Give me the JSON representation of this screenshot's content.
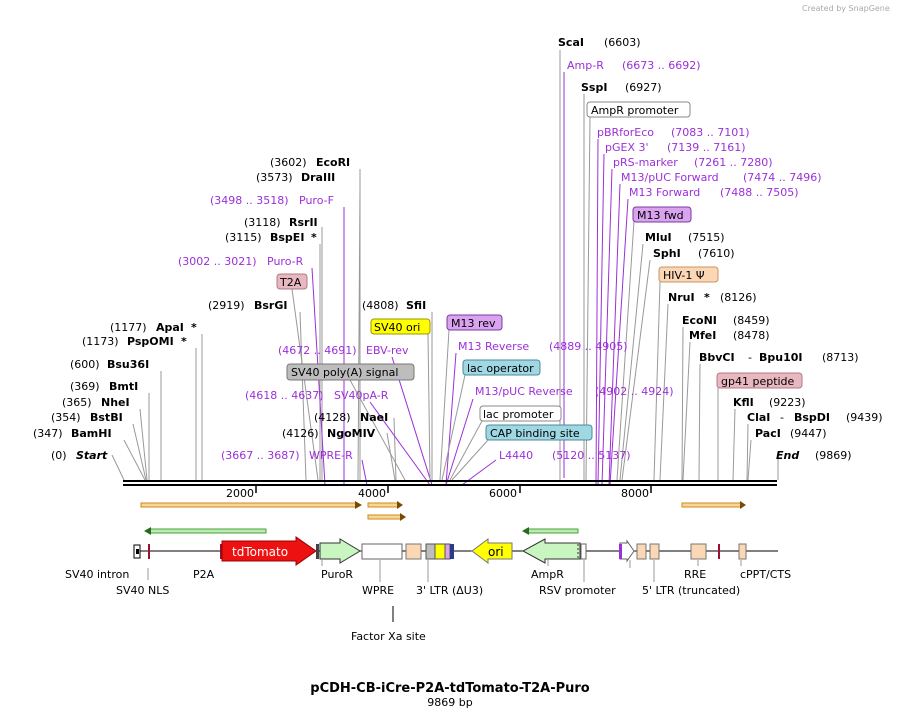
{
  "credit": "Created by SnapGene",
  "plasmid": {
    "name": "pCDH-CB-iCre-P2A-tdTomato-T2A-Puro",
    "length_label": "9869 bp"
  },
  "colors": {
    "primer": "#9b30d8",
    "sites": "#000000",
    "line": "#999999",
    "axis": "#000000",
    "orange_arrow": "#f2a33a",
    "green_arrow": "#33aa33",
    "tdTomato": "#ee1111",
    "ori": "#ffff00"
  },
  "axis_ticks": [
    "2000",
    "4000",
    "6000",
    "8000"
  ],
  "sites": [
    {
      "name": "ScaI",
      "pos": "(6603)",
      "star": false
    },
    {
      "name": "SspI",
      "pos": "(6927)",
      "star": false
    },
    {
      "name": "EcoRI",
      "pos": "(3602)",
      "star": false
    },
    {
      "name": "DraIII",
      "pos": "(3573)",
      "star": false
    },
    {
      "name": "RsrII",
      "pos": "(3118)",
      "star": false
    },
    {
      "name": "BspEI",
      "pos": "(3115)",
      "star": true
    },
    {
      "name": "BsrGI",
      "pos": "(2919)",
      "star": false
    },
    {
      "name": "SfiI",
      "pos": "(4808)",
      "star": false
    },
    {
      "name": "ApaI",
      "pos": "(1177)",
      "star": true
    },
    {
      "name": "PspOMI",
      "pos": "(1173)",
      "star": true
    },
    {
      "name": "Bsu36I",
      "pos": "(600)",
      "star": false
    },
    {
      "name": "BmtI",
      "pos": "(369)",
      "star": false
    },
    {
      "name": "NheI",
      "pos": "(365)",
      "star": false
    },
    {
      "name": "BstBI",
      "pos": "(354)",
      "star": false
    },
    {
      "name": "BamHI",
      "pos": "(347)",
      "star": false
    },
    {
      "name": "NaeI",
      "pos": "(4128)",
      "star": false
    },
    {
      "name": "NgoMIV",
      "pos": "(4126)",
      "star": false
    },
    {
      "name": "MluI",
      "pos": "(7515)",
      "star": false
    },
    {
      "name": "SphI",
      "pos": "(7610)",
      "star": false
    },
    {
      "name": "NruI",
      "pos": "(8126)",
      "star": true
    },
    {
      "name": "EcoNI",
      "pos": "(8459)",
      "star": false
    },
    {
      "name": "MfeI",
      "pos": "(8478)",
      "star": false
    },
    {
      "name": "BbvCI",
      "pos": "",
      "star": false
    },
    {
      "name": "Bpu10I",
      "pos": "(8713)",
      "star": false
    },
    {
      "name": "KflI",
      "pos": "(9223)",
      "star": false
    },
    {
      "name": "ClaI",
      "pos": "",
      "star": false
    },
    {
      "name": "BspDI",
      "pos": "(9439)",
      "star": false
    },
    {
      "name": "PacI",
      "pos": "(9447)",
      "star": false
    }
  ],
  "start": {
    "label": "Start",
    "pos": "(0)"
  },
  "end": {
    "label": "End",
    "pos": "(9869)"
  },
  "primers": [
    {
      "name": "Amp-R",
      "range": "(6673 .. 6692)"
    },
    {
      "name": "Puro-F",
      "range": "(3498 .. 3518)"
    },
    {
      "name": "Puro-R",
      "range": "(3002 .. 3021)"
    },
    {
      "name": "pBRforEco",
      "range": "(7083 .. 7101)"
    },
    {
      "name": "pGEX 3'",
      "range": "(7139 .. 7161)"
    },
    {
      "name": "pRS-marker",
      "range": "(7261 .. 7280)"
    },
    {
      "name": "M13/pUC Forward",
      "range": "(7474 .. 7496)"
    },
    {
      "name": "M13 Forward",
      "range": "(7488 .. 7505)"
    },
    {
      "name": "EBV-rev",
      "range": "(4672 .. 4691)"
    },
    {
      "name": "M13 Reverse",
      "range": "(4889 .. 4905)"
    },
    {
      "name": "SV40pA-R",
      "range": "(4618 .. 4637)"
    },
    {
      "name": "M13/pUC Reverse",
      "range": "(4902 .. 4924)"
    },
    {
      "name": "WPRE-R",
      "range": "(3667 .. 3687)"
    },
    {
      "name": "L4440",
      "range": "(5120 .. 5137)"
    }
  ],
  "boxed_features": [
    "AmpR promoter",
    "M13 fwd",
    "HIV-1 Ψ",
    "T2A",
    "SV40 ori",
    "M13 rev",
    "SV40 poly(A) signal",
    "lac operator",
    "lac promoter",
    "CAP binding site",
    "gp41 peptide"
  ],
  "feature_map": {
    "tdTomato": "tdTomato",
    "ori": "ori",
    "labels": [
      "SV40 intron",
      "SV40 NLS",
      "P2A",
      "PuroR",
      "WPRE",
      "Factor Xa site",
      "3' LTR (ΔU3)",
      "AmpR",
      "RSV promoter",
      "5' LTR (truncated)",
      "RRE",
      "cPPT/CTS"
    ]
  }
}
